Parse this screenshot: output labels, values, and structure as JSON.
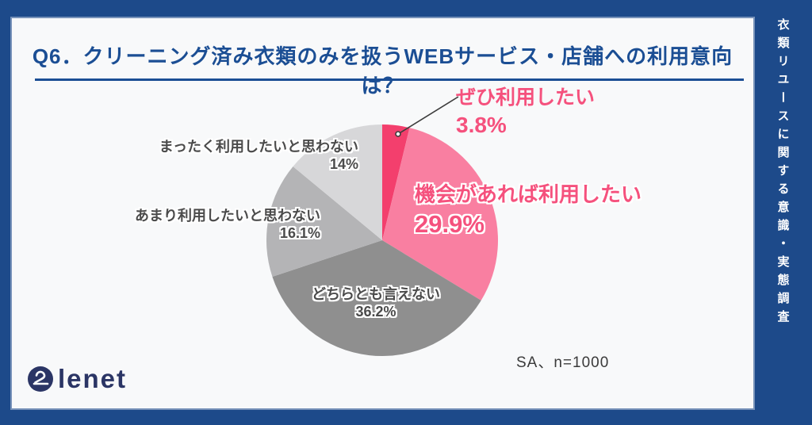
{
  "header": {
    "title": "Q6．クリーニング済み衣類のみを扱うWEBサービス・店舗への利用意向は？"
  },
  "sidebar": {
    "vertical_title": "衣類リユースに関する意識・実態調査"
  },
  "logo": {
    "text": "lenet",
    "icon": "hanger-icon"
  },
  "colors": {
    "frame_navy": "#1d4a8a",
    "title_navy": "#1b4e94",
    "logo_navy": "#2b3565",
    "label_pink": "#f5517d",
    "label_gray": "#4b4b4b",
    "panel_bg": "#f8f9fa"
  },
  "chart_data": {
    "type": "pie",
    "title": "Q6．クリーニング済み衣類のみを扱うWEBサービス・店舗への利用意向は？",
    "note": "SA、n=1000",
    "categories": [
      "ぜひ利用したい",
      "機会があれば利用したい",
      "どちらとも言えない",
      "あまり利用したいと思わない",
      "まったく利用したいと思わない"
    ],
    "values": [
      3.8,
      29.9,
      36.2,
      16.1,
      14
    ],
    "display_values": [
      "3.8%",
      "29.9%",
      "36.2%",
      "16.1%",
      "14%"
    ],
    "colors": [
      "#f33f6d",
      "#f97fa1",
      "#8f8f8f",
      "#b4b4b6",
      "#d7d7d9"
    ],
    "start_angle": "12-oclock",
    "direction": "clockwise",
    "legend_position": "labels-around-pie"
  }
}
